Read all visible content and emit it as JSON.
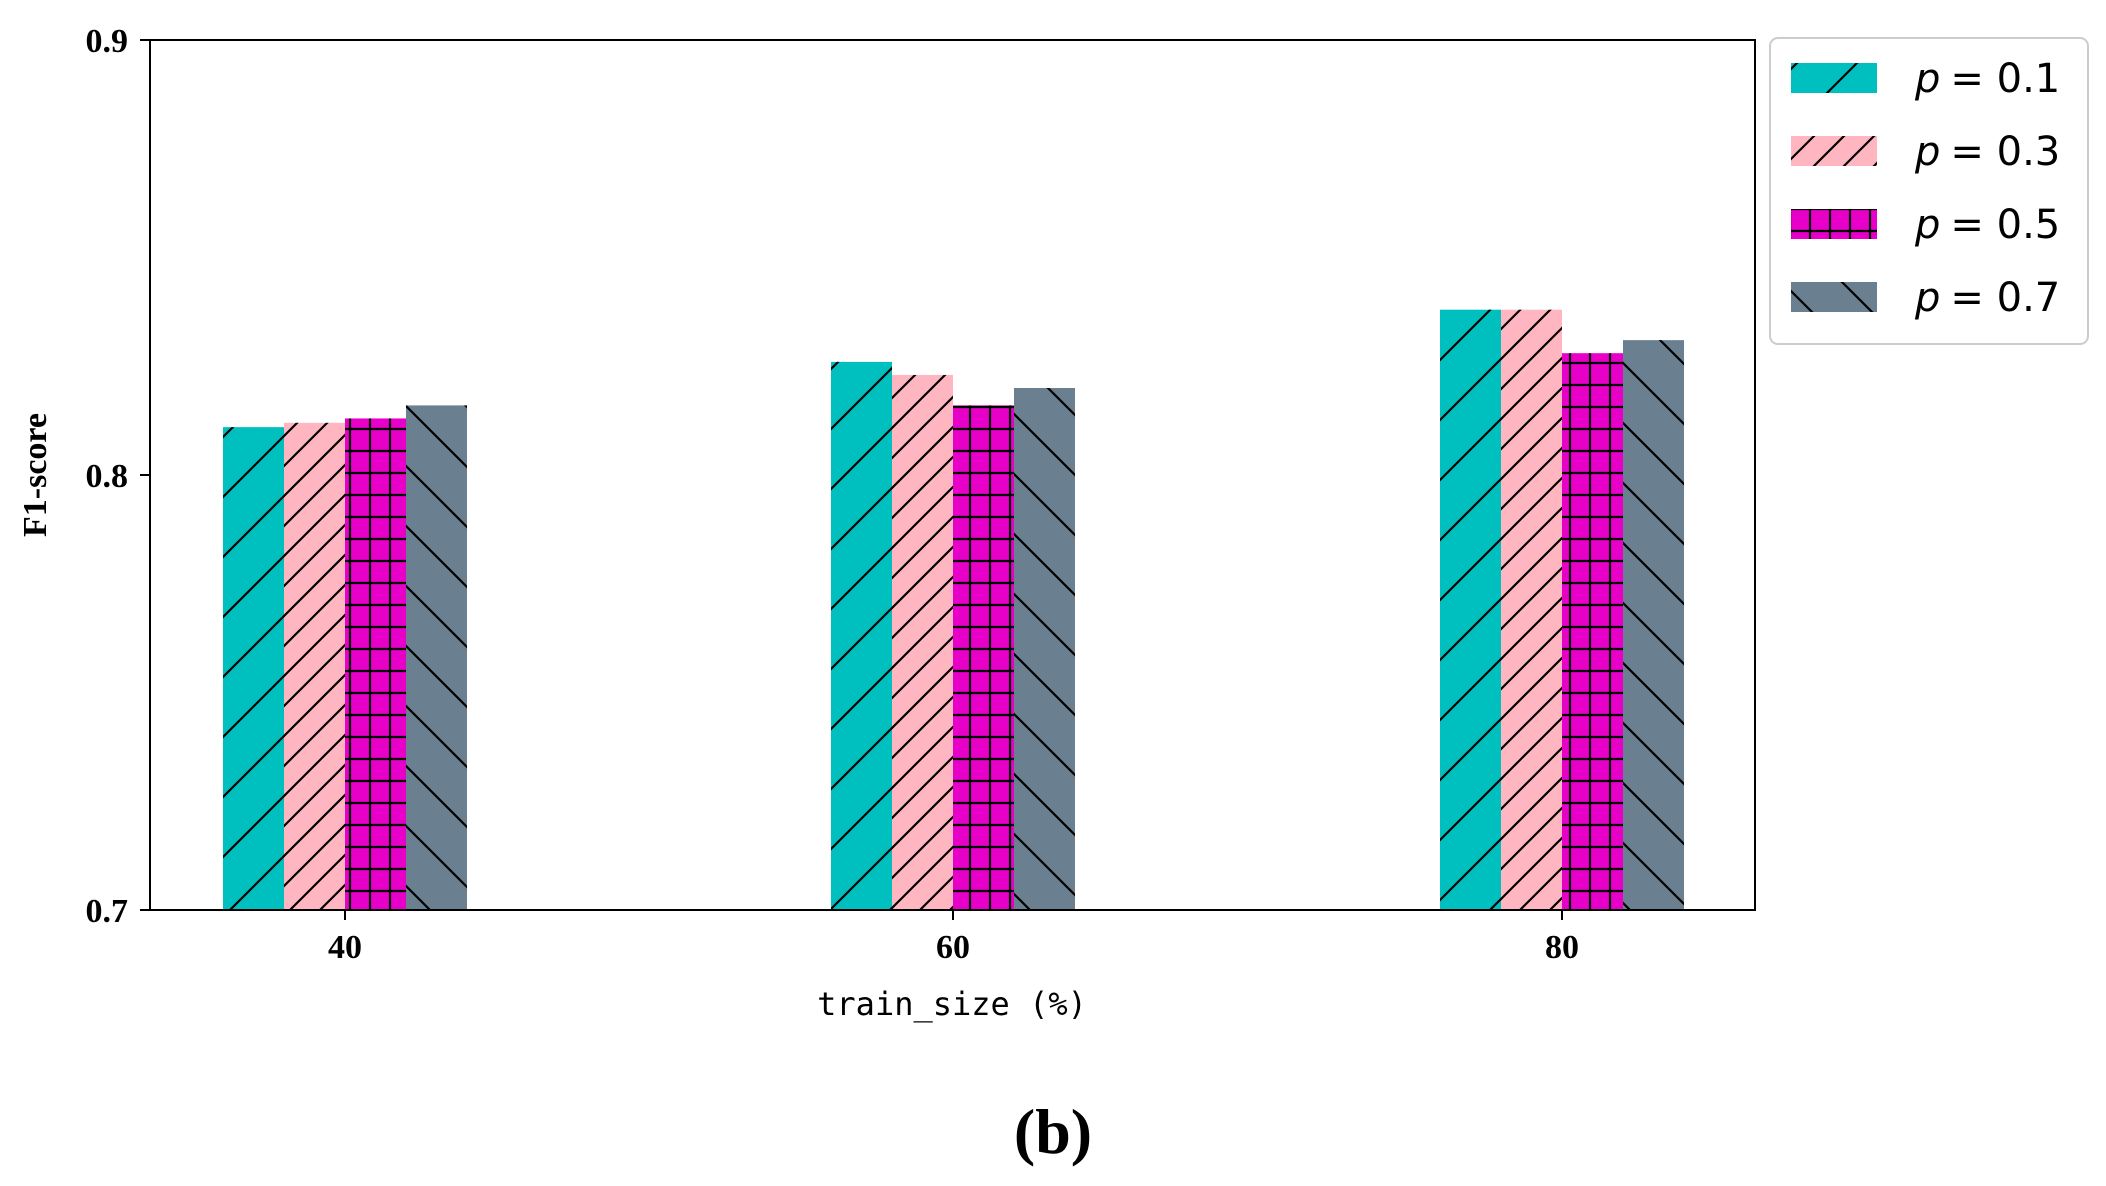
{
  "chart_data": {
    "type": "bar",
    "title": "",
    "xlabel": "train_size (%)",
    "ylabel": "F1-score",
    "categories": [
      "40",
      "60",
      "80"
    ],
    "ylim": [
      0.7,
      0.9
    ],
    "yticks": [
      "0.7",
      "0.8",
      "0.9"
    ],
    "grid": false,
    "legend_position": "outside top-right",
    "series": [
      {
        "name": "p = 0.1",
        "symbol": "p",
        "label": "= 0.1",
        "color": "#00BFBF",
        "hatch": "forward-slash",
        "values": [
          0.811,
          0.826,
          0.838
        ]
      },
      {
        "name": "p = 0.3",
        "symbol": "p",
        "label": "= 0.3",
        "color": "#FFB6C1",
        "hatch": "forward-slash-dense",
        "values": [
          0.812,
          0.823,
          0.838
        ]
      },
      {
        "name": "p = 0.5",
        "symbol": "p",
        "label": "= 0.5",
        "color": "#E600C8",
        "hatch": "grid",
        "values": [
          0.813,
          0.816,
          0.828
        ]
      },
      {
        "name": "p = 0.7",
        "symbol": "p",
        "label": "= 0.7",
        "color": "#6A7F8F",
        "hatch": "back-slash",
        "values": [
          0.816,
          0.82,
          0.831
        ]
      }
    ]
  },
  "caption": "(b)"
}
